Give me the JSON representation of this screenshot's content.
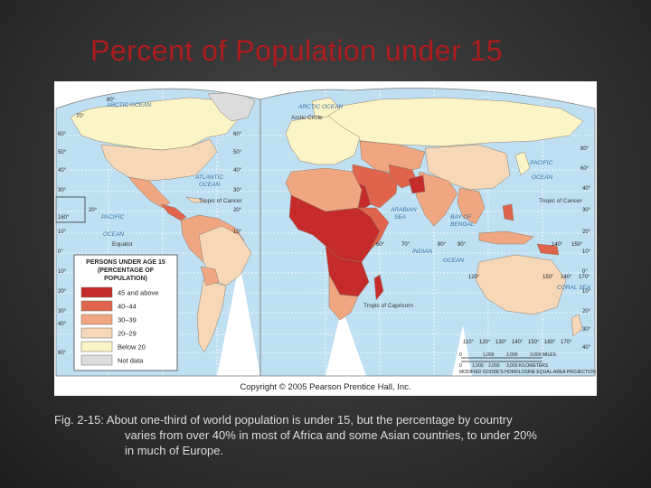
{
  "slide": {
    "title": "Percent of Population under 15",
    "caption_lines": [
      "Fig. 2-15: About one-third of world population is under 15, but the percentage by country",
      "varies from over 40% in most of Africa and some Asian countries, to under 20%",
      "in much of Europe."
    ]
  },
  "map": {
    "copyright": "Copyright © 2005 Pearson Prentice Hall, Inc.",
    "projection": "MODIFIED GOODE'S HOMOLOSINE EQUAL-AREA PROJECTION",
    "legend": {
      "title_lines": [
        "PERSONS UNDER AGE 15",
        "(PERCENTAGE OF",
        "POPULATION)"
      ],
      "classes": [
        {
          "label": "45 and above",
          "color": "#c62b2b"
        },
        {
          "label": "40–44",
          "color": "#e0634b"
        },
        {
          "label": "30–39",
          "color": "#f0a681"
        },
        {
          "label": "20–29",
          "color": "#f6d8b8"
        },
        {
          "label": "Below 20",
          "color": "#fbf4c6"
        },
        {
          "label": "Not data",
          "color": "#dcdcdc"
        }
      ]
    },
    "water_labels": {
      "arctic_ocean": "ARCTIC OCEAN",
      "arctic_ocean_2": "ARCTIC OCEAN",
      "arctic_circle": "Arctic Circle",
      "atlantic_ocean": [
        "ATLANTIC",
        "OCEAN"
      ],
      "pacific_ocean_e": [
        "PACIFIC",
        "OCEAN"
      ],
      "pacific_ocean_w": [
        "PACIFIC",
        "OCEAN"
      ],
      "indian_ocean": [
        "INDIAN",
        "OCEAN"
      ],
      "tropic_cancer_1": "Tropic of Cancer",
      "tropic_cancer_2": "Tropic of Cancer",
      "tropic_capricorn": "Tropic of Capricorn",
      "equator": "Equator",
      "arabian_sea": [
        "ARABIAN",
        "SEA"
      ],
      "bay_of_bengal": [
        "BAY OF",
        "BENGAL"
      ],
      "coral_sea": "CORAL SEA"
    },
    "latitude_labels": {
      "top": "80°",
      "left_side": [
        "70°",
        "60°",
        "50°",
        "40°",
        "30°",
        "20°",
        "10°",
        "0°",
        "10°",
        "20°",
        "30°",
        "40°",
        "60°"
      ],
      "mid_side": [
        "60°",
        "50°",
        "40°",
        "30°",
        "20°",
        "10°"
      ],
      "right_side": [
        "80°",
        "60°",
        "40°",
        "30°",
        "20°",
        "10°",
        "0°",
        "10°",
        "20°",
        "30°",
        "40°"
      ]
    },
    "longitude_labels_asia": [
      "60°",
      "70°",
      "80°",
      "90°",
      "140°",
      "150°"
    ],
    "longitude_labels_oceania_top": [
      "120°",
      "150°",
      "140°",
      "170°"
    ],
    "longitude_labels_bottom": [
      "110°",
      "120°",
      "130°",
      "140°",
      "150°",
      "160°",
      "170°"
    ],
    "inset_label": "160°",
    "scale": {
      "miles_ticks": [
        "0",
        "1,000",
        "2,000",
        "3,000 MILES"
      ],
      "km_ticks": [
        "0",
        "1,000",
        "2,000",
        "3,000 KILOMETERS"
      ]
    }
  }
}
